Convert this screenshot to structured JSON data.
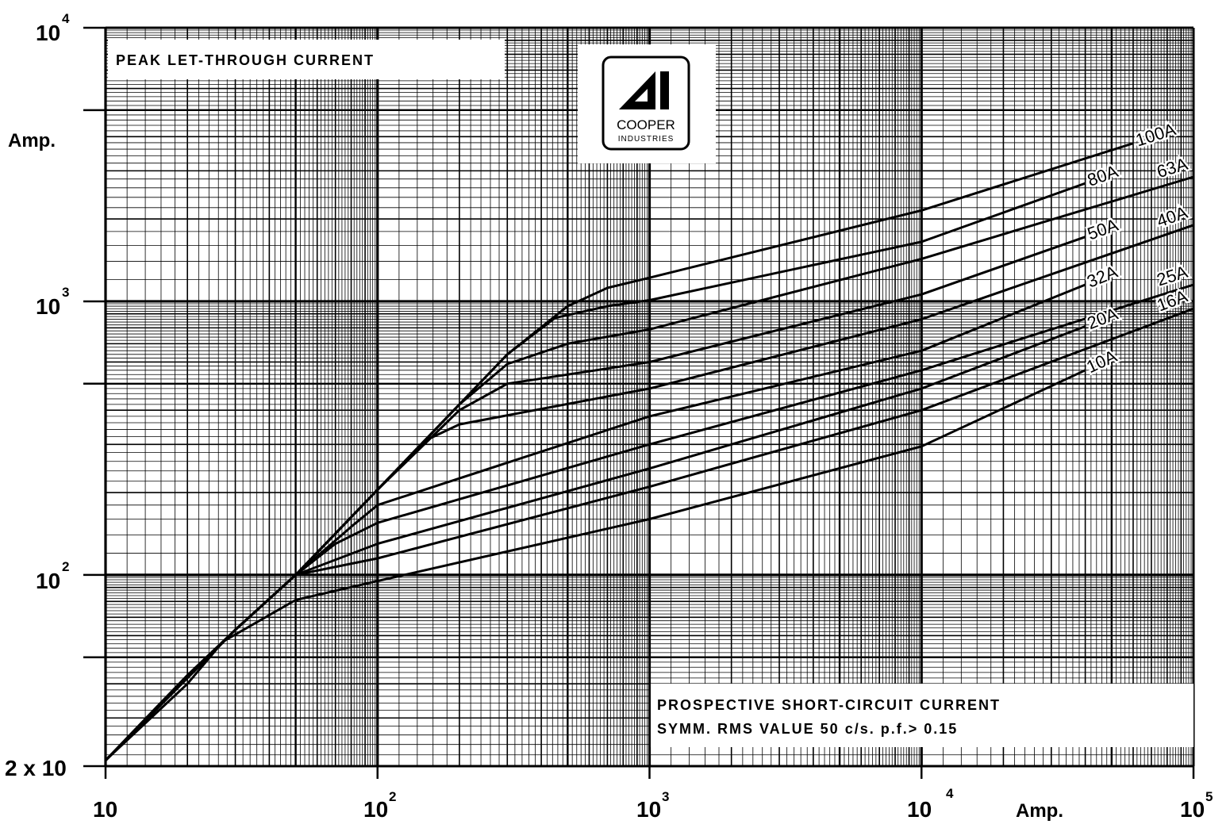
{
  "chart_data": {
    "type": "line",
    "title": "PEAK LET-THROUGH CURRENT",
    "xlabel": "PROSPECTIVE SHORT-CIRCUIT CURRENT",
    "xlabel_sub": "SYMM. RMS VALUE   50 c/s.  p.f.> 0.15",
    "x_unit": "Amp.",
    "y_unit": "Amp.",
    "x_scale": "log",
    "y_scale": "log",
    "xlim": [
      10,
      100000
    ],
    "ylim": [
      20,
      10000
    ],
    "grid": true,
    "x_ticks": [
      {
        "base": "10",
        "exp": ""
      },
      {
        "base": "10",
        "exp": "2"
      },
      {
        "base": "10",
        "exp": "3"
      },
      {
        "base": "10",
        "exp": "4"
      },
      {
        "base": "10",
        "exp": "5"
      }
    ],
    "y_ticks": [
      {
        "base": "2 x 10",
        "exp": ""
      },
      {
        "base": "10",
        "exp": "2"
      },
      {
        "base": "10",
        "exp": "3"
      },
      {
        "base": "10",
        "exp": "4"
      }
    ],
    "series": [
      {
        "name": "100A",
        "points": [
          [
            10,
            21
          ],
          [
            15,
            32
          ],
          [
            20,
            43
          ],
          [
            30,
            63
          ],
          [
            50,
            100
          ],
          [
            100,
            205
          ],
          [
            200,
            420
          ],
          [
            300,
            640
          ],
          [
            500,
            960
          ],
          [
            700,
            1120
          ],
          [
            1000,
            1220
          ],
          [
            10000,
            2150
          ],
          [
            60000,
            3780
          ]
        ]
      },
      {
        "name": "80A",
        "points": [
          [
            10,
            21
          ],
          [
            30,
            63
          ],
          [
            50,
            100
          ],
          [
            100,
            205
          ],
          [
            200,
            420
          ],
          [
            300,
            640
          ],
          [
            450,
            870
          ],
          [
            700,
            960
          ],
          [
            1000,
            1010
          ],
          [
            10000,
            1650
          ],
          [
            40000,
            2700
          ]
        ]
      },
      {
        "name": "63A",
        "points": [
          [
            10,
            21
          ],
          [
            30,
            63
          ],
          [
            50,
            100
          ],
          [
            100,
            205
          ],
          [
            200,
            420
          ],
          [
            300,
            590
          ],
          [
            500,
            700
          ],
          [
            1000,
            790
          ],
          [
            10000,
            1430
          ],
          [
            100000,
            2850
          ]
        ]
      },
      {
        "name": "50A",
        "points": [
          [
            10,
            21
          ],
          [
            30,
            63
          ],
          [
            50,
            100
          ],
          [
            100,
            205
          ],
          [
            200,
            400
          ],
          [
            300,
            500
          ],
          [
            1000,
            600
          ],
          [
            10000,
            1060
          ],
          [
            40000,
            1720
          ]
        ]
      },
      {
        "name": "40A",
        "points": [
          [
            10,
            21
          ],
          [
            30,
            63
          ],
          [
            50,
            100
          ],
          [
            100,
            205
          ],
          [
            150,
            310
          ],
          [
            200,
            355
          ],
          [
            1000,
            480
          ],
          [
            10000,
            860
          ],
          [
            100000,
            1900
          ]
        ]
      },
      {
        "name": "32A",
        "points": [
          [
            10,
            21
          ],
          [
            30,
            63
          ],
          [
            50,
            100
          ],
          [
            80,
            150
          ],
          [
            100,
            180
          ],
          [
            1000,
            380
          ],
          [
            10000,
            660
          ],
          [
            40000,
            1150
          ]
        ]
      },
      {
        "name": "25A",
        "points": [
          [
            10,
            21
          ],
          [
            30,
            63
          ],
          [
            50,
            100
          ],
          [
            70,
            130
          ],
          [
            100,
            155
          ],
          [
            1000,
            300
          ],
          [
            10000,
            560
          ],
          [
            100000,
            1150
          ]
        ]
      },
      {
        "name": "20A",
        "points": [
          [
            10,
            21
          ],
          [
            30,
            63
          ],
          [
            50,
            100
          ],
          [
            100,
            130
          ],
          [
            1000,
            245
          ],
          [
            10000,
            480
          ],
          [
            40000,
            810
          ]
        ]
      },
      {
        "name": "16A",
        "points": [
          [
            10,
            21
          ],
          [
            30,
            63
          ],
          [
            50,
            100
          ],
          [
            100,
            115
          ],
          [
            1000,
            210
          ],
          [
            10000,
            400
          ],
          [
            100000,
            940
          ]
        ]
      },
      {
        "name": "10A",
        "points": [
          [
            10,
            21
          ],
          [
            20,
            40
          ],
          [
            27,
            57
          ],
          [
            50,
            81
          ],
          [
            100,
            95
          ],
          [
            1000,
            160
          ],
          [
            10000,
            295
          ],
          [
            40000,
            560
          ]
        ]
      }
    ],
    "logo": {
      "line1": "COOPER",
      "line2": "INDUSTRIES"
    }
  }
}
